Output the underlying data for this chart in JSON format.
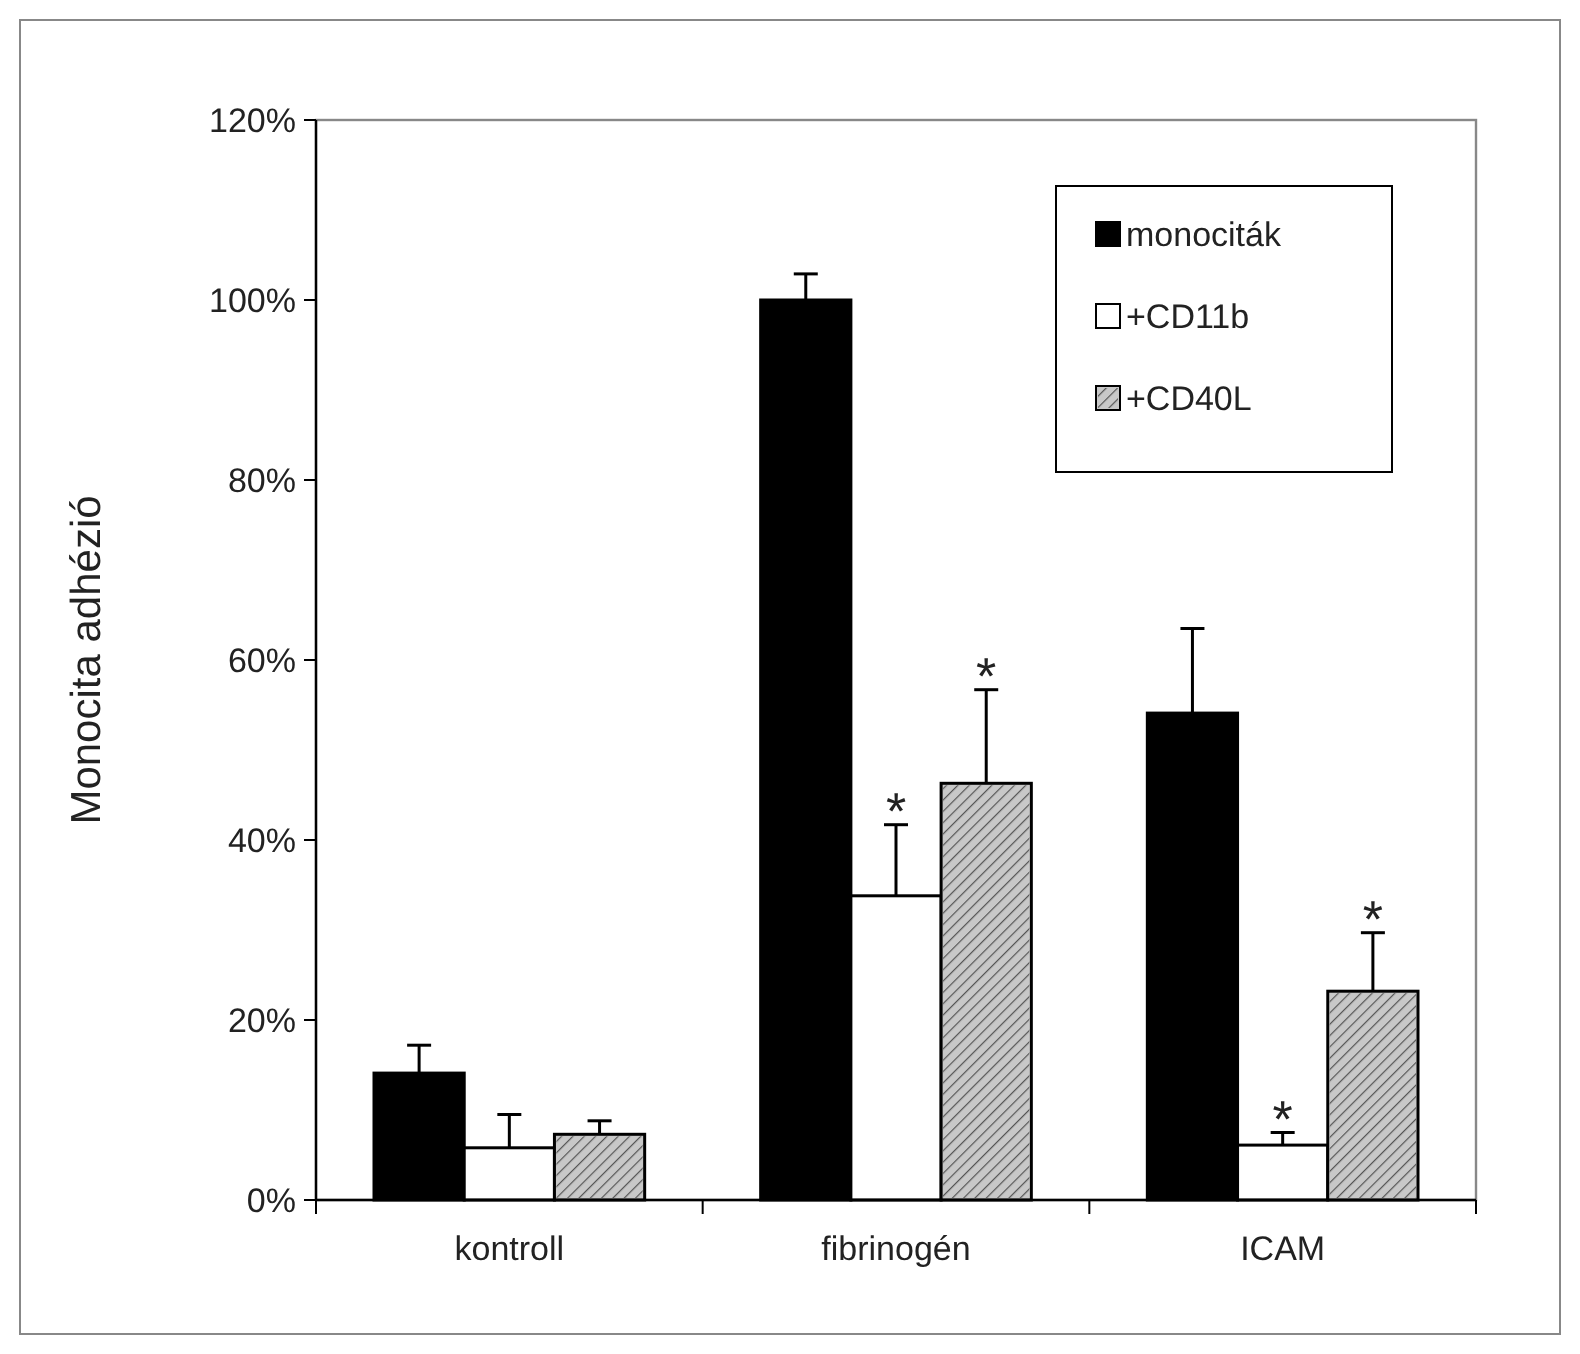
{
  "chart_data": {
    "type": "bar",
    "ylabel": "Monocita adhézió",
    "categories": [
      "kontroll",
      "fibrinogén",
      "ICAM"
    ],
    "series": [
      {
        "name": "monociták",
        "color": "#000000",
        "values": [
          14.1,
          100,
          54.1
        ],
        "errors": [
          [
            14.1,
            17.2
          ],
          [
            100,
            102.9
          ],
          [
            54.1,
            63.5
          ]
        ]
      },
      {
        "name": "+CD11b",
        "color": "#ffffff",
        "values": [
          5.8,
          33.8,
          6.1
        ],
        "errors": [
          [
            5.8,
            9.5
          ],
          [
            33.8,
            41.7
          ],
          [
            6.1,
            7.5
          ]
        ]
      },
      {
        "name": "+CD40L",
        "color": "#c8c8c8",
        "values": [
          7.3,
          46.3,
          23.2
        ],
        "errors": [
          [
            7.3,
            8.8
          ],
          [
            46.3,
            56.7
          ],
          [
            23.2,
            29.7
          ]
        ]
      }
    ],
    "ylim": [
      0,
      120
    ],
    "yticks": [
      {
        "value": 0,
        "label": "0%"
      },
      {
        "value": 20,
        "label": "20%"
      },
      {
        "value": 40,
        "label": "40%"
      },
      {
        "value": 60,
        "label": "60%"
      },
      {
        "value": 80,
        "label": "80%"
      },
      {
        "value": 100,
        "label": "100%"
      },
      {
        "value": 120,
        "label": "120%"
      }
    ],
    "annotations": [
      "*",
      "*",
      "*",
      "*"
    ],
    "legend": "top right",
    "grid": false
  }
}
